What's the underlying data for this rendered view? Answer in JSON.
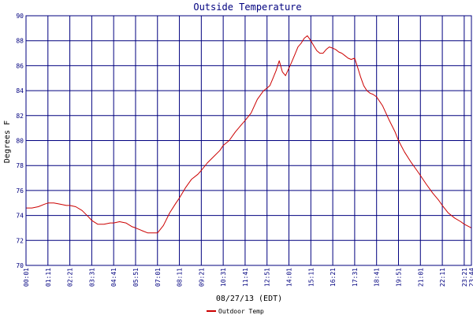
{
  "chart_data": {
    "type": "line",
    "title": "Outside Temperature",
    "ylabel": "Degrees F",
    "xlabel": "08/27/13 (EDT)",
    "ylim": [
      70,
      90
    ],
    "y_ticks": [
      "70",
      "72",
      "74",
      "76",
      "78",
      "80",
      "82",
      "84",
      "86",
      "88",
      "90"
    ],
    "x_ticks": [
      "00:01",
      "01:11",
      "02:21",
      "03:31",
      "04:41",
      "05:51",
      "07:01",
      "08:11",
      "09:21",
      "10:31",
      "11:41",
      "12:51",
      "14:01",
      "15:11",
      "16:21",
      "17:31",
      "18:41",
      "19:51",
      "21:01",
      "22:11",
      "23:21",
      "23:44"
    ],
    "grid": true,
    "legend_position": "bottom-left",
    "colors": {
      "series": "#cc0000",
      "grid": "#00007f",
      "frame": "#00007f",
      "text": "#00007f"
    },
    "series": [
      {
        "name": "Outdoor Temp",
        "x": [
          "00:01",
          "00:20",
          "00:40",
          "01:00",
          "01:11",
          "01:30",
          "01:50",
          "02:10",
          "02:21",
          "02:40",
          "03:00",
          "03:20",
          "03:31",
          "03:50",
          "04:10",
          "04:30",
          "04:41",
          "05:00",
          "05:20",
          "05:40",
          "05:51",
          "06:10",
          "06:30",
          "06:50",
          "07:01",
          "07:20",
          "07:40",
          "08:00",
          "08:11",
          "08:30",
          "08:50",
          "09:10",
          "09:21",
          "09:40",
          "10:00",
          "10:20",
          "10:31",
          "10:50",
          "11:10",
          "11:30",
          "11:41",
          "12:00",
          "12:20",
          "12:40",
          "12:51",
          "13:00",
          "13:10",
          "13:20",
          "13:30",
          "13:40",
          "13:50",
          "14:01",
          "14:10",
          "14:20",
          "14:30",
          "14:40",
          "14:50",
          "15:00",
          "15:11",
          "15:20",
          "15:30",
          "15:40",
          "15:50",
          "16:00",
          "16:10",
          "16:21",
          "16:30",
          "16:40",
          "16:50",
          "17:00",
          "17:10",
          "17:20",
          "17:31",
          "17:40",
          "17:50",
          "18:00",
          "18:10",
          "18:20",
          "18:30",
          "18:41",
          "19:00",
          "19:20",
          "19:40",
          "19:51",
          "20:10",
          "20:30",
          "20:50",
          "21:01",
          "21:20",
          "21:40",
          "22:00",
          "22:11",
          "22:30",
          "22:50",
          "23:10",
          "23:21",
          "23:44"
        ],
        "values": [
          74.6,
          74.6,
          74.7,
          74.9,
          75.0,
          75.0,
          74.9,
          74.8,
          74.8,
          74.7,
          74.4,
          73.9,
          73.6,
          73.3,
          73.3,
          73.4,
          73.4,
          73.5,
          73.4,
          73.1,
          73.0,
          72.8,
          72.6,
          72.6,
          72.6,
          73.2,
          74.2,
          75.0,
          75.4,
          76.2,
          76.9,
          77.3,
          77.6,
          78.2,
          78.7,
          79.2,
          79.6,
          80.0,
          80.7,
          81.3,
          81.6,
          82.2,
          83.3,
          84.0,
          84.2,
          84.4,
          85.0,
          85.6,
          86.4,
          85.5,
          85.2,
          85.8,
          86.3,
          86.9,
          87.5,
          87.8,
          88.2,
          88.4,
          88.0,
          87.6,
          87.2,
          87.0,
          87.0,
          87.3,
          87.5,
          87.4,
          87.3,
          87.1,
          87.0,
          86.8,
          86.6,
          86.5,
          86.6,
          85.9,
          85.1,
          84.4,
          84.0,
          83.8,
          83.7,
          83.5,
          82.8,
          81.7,
          80.7,
          80.0,
          79.1,
          78.3,
          77.6,
          77.2,
          76.5,
          75.8,
          75.2,
          74.8,
          74.2,
          73.8,
          73.5,
          73.3,
          73.0
        ]
      }
    ]
  }
}
